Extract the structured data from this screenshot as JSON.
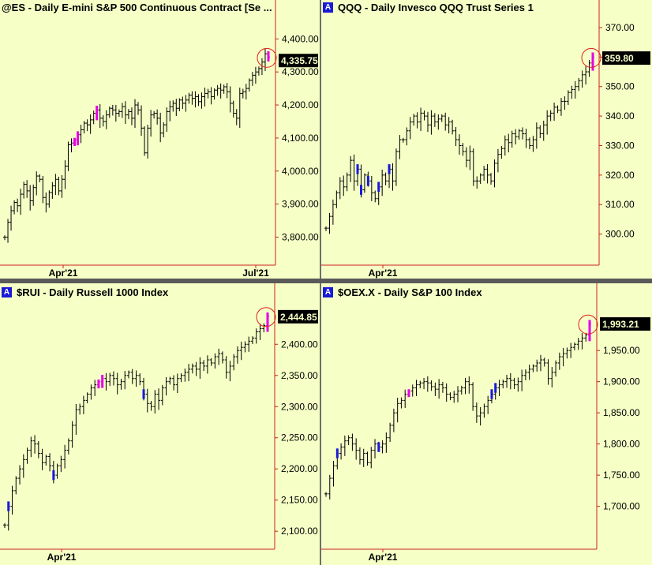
{
  "colors": {
    "background": "#f5ffc6",
    "bar": "#000000",
    "highlight": "#e600e6",
    "volume": "#1a1ad8",
    "axis": "#d02020",
    "circle": "#e02020"
  },
  "chart_data": [
    {
      "type": "ohlc",
      "badge": "",
      "title": "@ES - Daily  E-mini S&P 500 Continuous Contract [Se ...",
      "y_ticks": [
        "4,400.00",
        "4,300.00",
        "4,200.00",
        "4,100.00",
        "4,000.00",
        "3,900.00",
        "3,800.00"
      ],
      "y_values": [
        4400,
        4300,
        4200,
        4100,
        4000,
        3900,
        3800
      ],
      "ylim": [
        3720,
        4470
      ],
      "x_ticks": [
        "Apr'21",
        "Jul'21"
      ],
      "last_value": 4335.75,
      "last_label": "4,335.75",
      "series": [
        3800,
        3845,
        3880,
        3905,
        3895,
        3930,
        3960,
        3940,
        3910,
        3950,
        3985,
        3975,
        3920,
        3900,
        3935,
        3955,
        3975,
        3940,
        3975,
        4015,
        4080,
        4085,
        4095,
        4110,
        4125,
        4145,
        4140,
        4155,
        4175,
        4185,
        4160,
        4150,
        4170,
        4190,
        4185,
        4175,
        4180,
        4195,
        4170,
        4180,
        4160,
        4200,
        4185,
        4130,
        4055,
        4130,
        4170,
        4175,
        4160,
        4115,
        4140,
        4180,
        4195,
        4205,
        4190,
        4215,
        4205,
        4215,
        4230,
        4220,
        4225,
        4210,
        4225,
        4235,
        4240,
        4225,
        4245,
        4250,
        4245,
        4255,
        4240,
        4205,
        4175,
        4160,
        4235,
        4240,
        4250,
        4275,
        4290,
        4300,
        4310,
        4330,
        4355,
        4345
      ]
    },
    {
      "type": "ohlc",
      "badge": "A",
      "title": "QQQ - Daily  Invesco QQQ Trust Series 1",
      "y_ticks": [
        "370.00",
        "360.00",
        "350.00",
        "340.00",
        "330.00",
        "320.00",
        "310.00",
        "300.00"
      ],
      "y_values": [
        370,
        360,
        350,
        340,
        330,
        320,
        310,
        300
      ],
      "ylim": [
        290,
        374
      ],
      "x_ticks": [
        "Apr'21"
      ],
      "last_value": 359.8,
      "last_label": "359.80",
      "series": [
        302,
        306,
        310,
        314,
        318,
        316,
        320,
        325,
        318,
        322,
        315,
        320,
        318,
        314,
        312,
        316,
        320,
        318,
        322,
        318,
        328,
        332,
        332,
        335,
        338,
        340,
        338,
        341,
        340,
        337,
        340,
        338,
        339,
        340,
        337,
        338,
        335,
        332,
        330,
        328,
        325,
        328,
        318,
        318,
        320,
        322,
        320,
        318,
        324,
        327,
        329,
        332,
        331,
        334,
        333,
        335,
        334,
        332,
        330,
        332,
        336,
        334,
        337,
        340,
        341,
        343,
        342,
        345,
        345,
        348,
        349,
        350,
        352,
        354,
        355,
        358,
        360
      ]
    },
    {
      "type": "ohlc",
      "badge": "A",
      "title": "$RUI - Daily  Russell 1000 Index",
      "y_ticks": [
        "2,400.00",
        "2,350.00",
        "2,300.00",
        "2,250.00",
        "2,200.00",
        "2,150.00",
        "2,100.00"
      ],
      "y_values": [
        2400,
        2350,
        2300,
        2250,
        2200,
        2150,
        2100
      ],
      "ylim": [
        2080,
        2470
      ],
      "x_ticks": [
        "Apr'21"
      ],
      "last_value": 2444.85,
      "last_label": "2,444.85",
      "series": [
        2110,
        2140,
        2165,
        2185,
        2200,
        2215,
        2230,
        2245,
        2240,
        2225,
        2210,
        2220,
        2205,
        2190,
        2205,
        2215,
        2230,
        2245,
        2270,
        2295,
        2300,
        2310,
        2320,
        2330,
        2335,
        2340,
        2345,
        2340,
        2350,
        2345,
        2335,
        2340,
        2350,
        2355,
        2345,
        2350,
        2340,
        2320,
        2305,
        2300,
        2320,
        2310,
        2330,
        2340,
        2345,
        2335,
        2345,
        2350,
        2355,
        2360,
        2365,
        2360,
        2370,
        2365,
        2375,
        2370,
        2380,
        2385,
        2375,
        2355,
        2365,
        2380,
        2390,
        2395,
        2400,
        2405,
        2410,
        2420,
        2425,
        2430,
        2445
      ]
    },
    {
      "type": "ohlc",
      "badge": "A",
      "title": "$OEX.X - Daily  S&P 100 Index",
      "y_ticks": [
        "1,993.21",
        "1,950.00",
        "1,900.00",
        "1,850.00",
        "1,800.00",
        "1,750.00",
        "1,700.00"
      ],
      "y_values": [
        1993.21,
        1950,
        1900,
        1850,
        1800,
        1750,
        1700
      ],
      "ylim": [
        1640,
        2030
      ],
      "x_ticks": [
        "Apr'21"
      ],
      "last_value": 1993.21,
      "last_label": "1,993.21",
      "series": [
        1720,
        1745,
        1765,
        1785,
        1795,
        1805,
        1810,
        1800,
        1790,
        1775,
        1785,
        1770,
        1790,
        1800,
        1795,
        1800,
        1810,
        1830,
        1850,
        1865,
        1870,
        1880,
        1885,
        1890,
        1895,
        1898,
        1900,
        1898,
        1892,
        1888,
        1895,
        1890,
        1880,
        1875,
        1880,
        1885,
        1890,
        1900,
        1895,
        1860,
        1845,
        1850,
        1860,
        1870,
        1880,
        1890,
        1895,
        1900,
        1905,
        1902,
        1895,
        1900,
        1910,
        1915,
        1920,
        1925,
        1930,
        1935,
        1930,
        1905,
        1915,
        1930,
        1940,
        1945,
        1950,
        1955,
        1960,
        1965,
        1970,
        1975,
        1993
      ]
    }
  ]
}
